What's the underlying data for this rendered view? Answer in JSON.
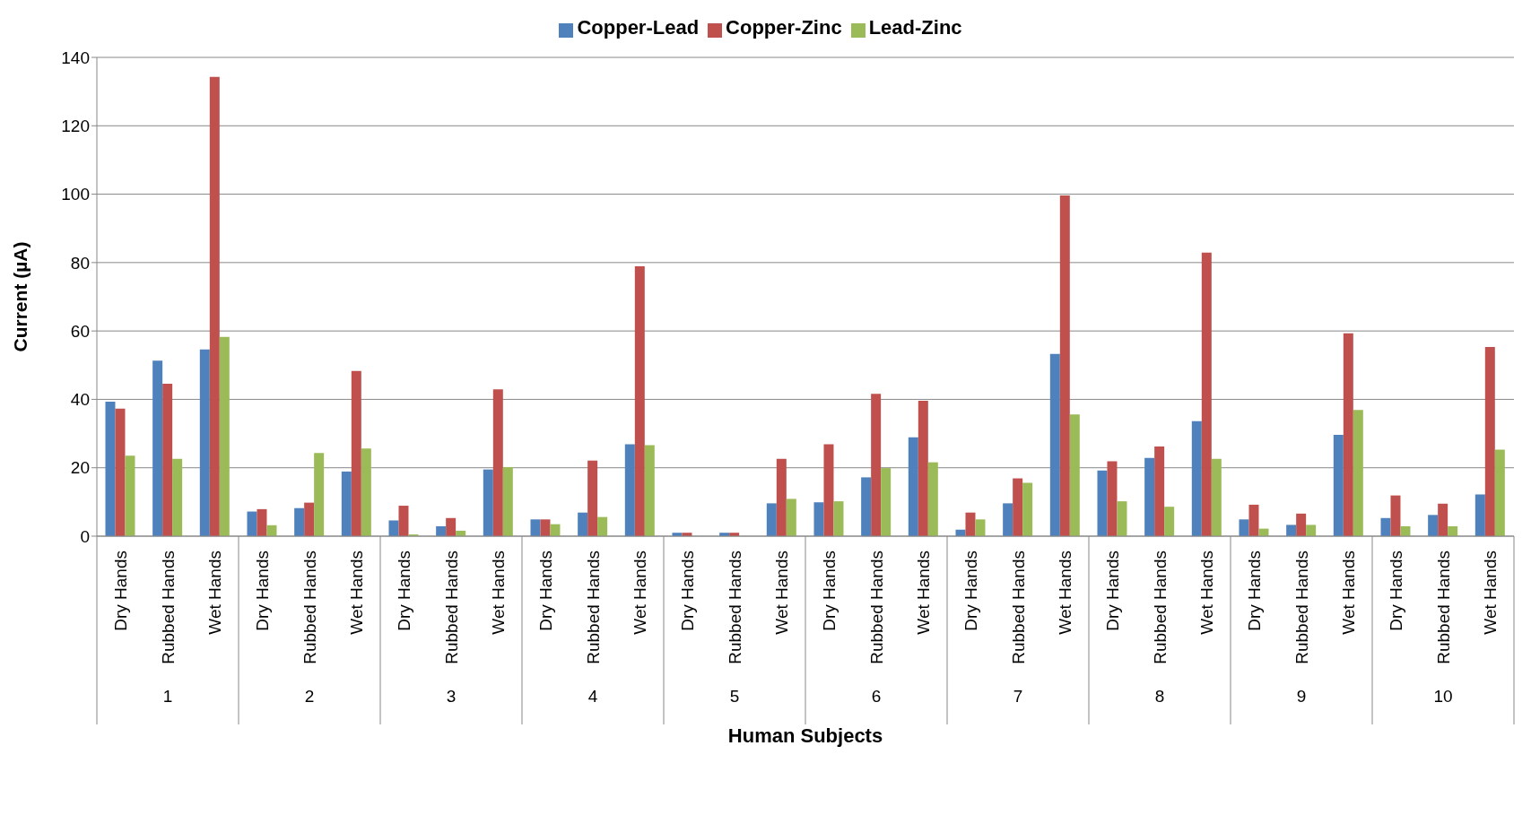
{
  "chart_data": {
    "type": "bar",
    "xlabel": "Human Subjects",
    "ylabel": "Current (µA)",
    "categories": [
      "Dry Hands",
      "Rubbed Hands",
      "Wet Hands",
      "Dry Hands",
      "Rubbed Hands",
      "Wet Hands",
      "Dry Hands",
      "Rubbed Hands",
      "Wet Hands",
      "Dry Hands",
      "Rubbed Hands",
      "Wet Hands",
      "Dry Hands",
      "Rubbed Hands",
      "Wet Hands",
      "Dry Hands",
      "Rubbed Hands",
      "Wet Hands",
      "Dry Hands",
      "Rubbed Hands",
      "Wet Hands",
      "Dry Hands",
      "Rubbed Hands",
      "Wet Hands",
      "Dry Hands",
      "Rubbed Hands",
      "Wet Hands",
      "Dry Hands",
      "Rubbed Hands",
      "Wet Hands"
    ],
    "annotations": [
      "1",
      "2",
      "3",
      "4",
      "5",
      "6",
      "7",
      "8",
      "9",
      "10"
    ],
    "series": [
      {
        "name": "Copper-Lead",
        "color": "#4f81bd",
        "values": [
          39.3,
          51.3,
          54.6,
          7.2,
          8.2,
          18.9,
          4.6,
          2.9,
          19.5,
          4.9,
          6.9,
          26.9,
          1.0,
          1.0,
          9.6,
          9.9,
          17.2,
          28.9,
          1.9,
          9.6,
          53.3,
          19.2,
          22.9,
          33.6,
          4.9,
          3.3,
          29.6,
          5.3,
          6.2,
          12.2
        ]
      },
      {
        "name": "Copper-Zinc",
        "color": "#c0504d",
        "values": [
          37.3,
          44.6,
          134.3,
          7.9,
          9.8,
          48.3,
          8.9,
          5.3,
          42.9,
          4.9,
          22.1,
          78.9,
          1.0,
          1.0,
          22.6,
          26.9,
          41.6,
          39.6,
          6.9,
          16.9,
          99.6,
          21.9,
          26.2,
          82.9,
          9.2,
          6.6,
          59.3,
          11.9,
          9.5,
          55.3
        ]
      },
      {
        "name": "Lead-Zinc",
        "color": "#9bbb59",
        "values": [
          23.5,
          22.6,
          58.3,
          3.2,
          24.3,
          25.6,
          0.5,
          1.6,
          20.2,
          3.5,
          5.6,
          26.6,
          null,
          0,
          10.9,
          10.2,
          19.9,
          21.6,
          4.9,
          15.6,
          35.6,
          10.2,
          8.6,
          22.6,
          2.2,
          3.3,
          36.9,
          2.9,
          2.9,
          25.3
        ]
      }
    ],
    "ylim": [
      0,
      140
    ],
    "yticks": [
      0,
      20,
      40,
      60,
      80,
      100,
      120,
      140
    ],
    "grid": "y",
    "legend": "top"
  }
}
